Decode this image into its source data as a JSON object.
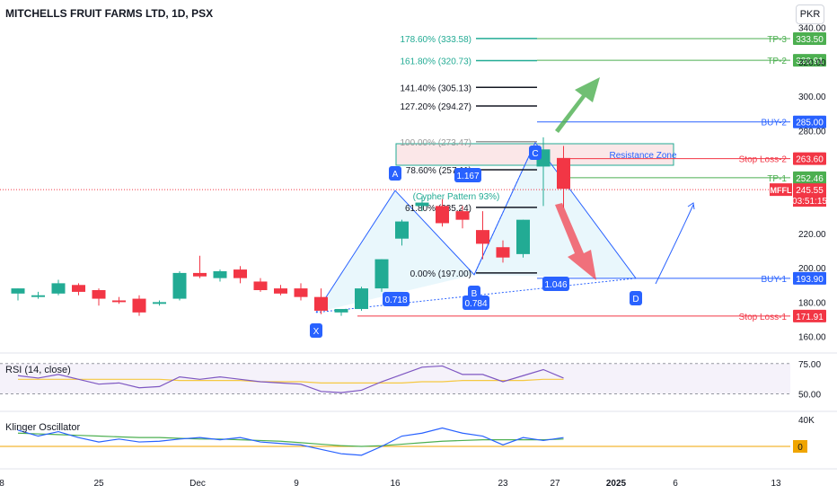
{
  "header": {
    "title": "MITCHELLS FRUIT FARMS LTD, 1D, PSX",
    "currency": "PKR"
  },
  "colors": {
    "up": "#22ab94",
    "down": "#f23645",
    "fib_green": "#22ab94",
    "tp": "#4caf50",
    "buy": "#2962ff",
    "stop": "#f23645",
    "pattern": "#2962ff",
    "zone": "#f8d7d9",
    "rsi_line": "#7e57c2",
    "rsi_ma": "#f5c842",
    "klinger": "#2962ff",
    "klinger_signal": "#4caf50",
    "zero_line": "#f0a500"
  },
  "chart_data": {
    "type": "candlestick",
    "title": "MITCHELLS FRUIT FARMS LTD, 1D, PSX",
    "ylim": [
      150,
      345
    ],
    "y_ticks": [
      "160.00",
      "180.00",
      "200.00",
      "220.00",
      "280.00",
      "300.00",
      "320.00",
      "340.00"
    ],
    "x_ticks": [
      "8",
      "25",
      "Dec",
      "9",
      "16",
      "23",
      "27",
      "2025",
      "6",
      "13"
    ],
    "candles": [
      {
        "o": 185,
        "h": 188,
        "l": 181,
        "c": 188
      },
      {
        "o": 183,
        "h": 186,
        "l": 182,
        "c": 184
      },
      {
        "o": 185,
        "h": 193,
        "l": 184,
        "c": 191
      },
      {
        "o": 190,
        "h": 191,
        "l": 184,
        "c": 186
      },
      {
        "o": 187,
        "h": 188,
        "l": 178,
        "c": 182
      },
      {
        "o": 181,
        "h": 183,
        "l": 179,
        "c": 180
      },
      {
        "o": 182,
        "h": 184,
        "l": 172,
        "c": 174
      },
      {
        "o": 179,
        "h": 181,
        "l": 178,
        "c": 180
      },
      {
        "o": 182,
        "h": 198,
        "l": 181,
        "c": 197
      },
      {
        "o": 197,
        "h": 207,
        "l": 194,
        "c": 195
      },
      {
        "o": 194,
        "h": 199,
        "l": 192,
        "c": 198
      },
      {
        "o": 199,
        "h": 201,
        "l": 191,
        "c": 194
      },
      {
        "o": 192,
        "h": 194,
        "l": 186,
        "c": 187
      },
      {
        "o": 188,
        "h": 190,
        "l": 184,
        "c": 185
      },
      {
        "o": 188,
        "h": 191,
        "l": 181,
        "c": 183
      },
      {
        "o": 183,
        "h": 188,
        "l": 173,
        "c": 175
      },
      {
        "o": 174,
        "h": 175,
        "l": 172,
        "c": 176
      },
      {
        "o": 176,
        "h": 189,
        "l": 175,
        "c": 188
      },
      {
        "o": 188,
        "h": 205,
        "l": 186,
        "c": 205
      },
      {
        "o": 217,
        "h": 228,
        "l": 213,
        "c": 227
      },
      {
        "o": 236,
        "h": 242,
        "l": 233,
        "c": 238
      },
      {
        "o": 236,
        "h": 240,
        "l": 224,
        "c": 226
      },
      {
        "o": 233,
        "h": 236,
        "l": 223,
        "c": 228
      },
      {
        "o": 222,
        "h": 233,
        "l": 205,
        "c": 214
      },
      {
        "o": 212,
        "h": 216,
        "l": 203,
        "c": 206
      },
      {
        "o": 208,
        "h": 228,
        "l": 206,
        "c": 228
      },
      {
        "o": 259,
        "h": 276,
        "l": 236,
        "c": 269
      },
      {
        "o": 264,
        "h": 271,
        "l": 235,
        "c": 246
      }
    ],
    "fib_levels": [
      {
        "label": "178.60% (333.58)",
        "value": 333.58,
        "color": "#22ab94"
      },
      {
        "label": "161.80% (320.73)",
        "value": 320.73,
        "color": "#22ab94"
      },
      {
        "label": "141.40% (305.13)",
        "value": 305.13,
        "color": "#131722"
      },
      {
        "label": "127.20% (294.27)",
        "value": 294.27,
        "color": "#131722"
      },
      {
        "label": "100.00% (273.47)",
        "value": 273.47,
        "color": "#999999"
      },
      {
        "label": "78.60% (257.11)",
        "value": 257.11,
        "color": "#131722"
      },
      {
        "label": "61.80% (235.24)",
        "value": 235.24,
        "color": "#131722"
      },
      {
        "label": "0.00% (197.00)",
        "value": 197.0,
        "color": "#131722"
      }
    ],
    "price_levels": [
      {
        "name": "TP-3",
        "value": 333.5,
        "price": "333.50",
        "kind": "tp"
      },
      {
        "name": "TP-2",
        "value": 320.91,
        "price": "320.91",
        "kind": "tp"
      },
      {
        "name": "BUY-2",
        "value": 285.0,
        "price": "285.00",
        "kind": "buy"
      },
      {
        "name": "Stop Loss-2",
        "value": 263.6,
        "price": "263.60",
        "kind": "stop"
      },
      {
        "name": "TP-1",
        "value": 252.46,
        "price": "252.46",
        "kind": "tp"
      },
      {
        "name": "BUY-1",
        "value": 193.9,
        "price": "193.90",
        "kind": "buy"
      },
      {
        "name": "Stop Loss-1",
        "value": 171.91,
        "price": "171.91",
        "kind": "stop"
      }
    ],
    "last_price": {
      "ticker": "MFFL",
      "price": "245.55",
      "countdown": "03:51:15"
    },
    "pattern": {
      "name": "(Cypher Pattern 93%)",
      "points": [
        {
          "label": "X",
          "value": 174
        },
        {
          "label": "A",
          "value": 245
        },
        {
          "label": "B",
          "value": 196
        },
        {
          "label": "C",
          "value": 273
        },
        {
          "label": "D",
          "value": 193.9
        }
      ],
      "ratios": [
        "0.718",
        "0.784",
        "1.167",
        "1.046"
      ]
    },
    "resistance_zone_label": "Resistance Zone",
    "rsi": {
      "label": "RSI (14, close)",
      "ticks": [
        "75.00",
        "50.00"
      ],
      "values": [
        65,
        63,
        66,
        62,
        58,
        59,
        55,
        56,
        64,
        62,
        64,
        62,
        60,
        59,
        58,
        52,
        51,
        53,
        60,
        66,
        72,
        73,
        66,
        66,
        60,
        65,
        70,
        63
      ],
      "ma": [
        62,
        62,
        62,
        62,
        62,
        62,
        62,
        62,
        61,
        61,
        61,
        61,
        60,
        60,
        60,
        59,
        59,
        59,
        59,
        59,
        60,
        60,
        61,
        61,
        61,
        61,
        62,
        62
      ]
    },
    "klinger": {
      "label": "Klinger Oscillator",
      "ticks": [
        "40K",
        "0"
      ],
      "values": [
        22,
        14,
        20,
        12,
        6,
        10,
        6,
        7,
        10,
        12,
        9,
        12,
        6,
        4,
        2,
        -4,
        -10,
        -12,
        0,
        14,
        18,
        25,
        18,
        14,
        2,
        12,
        8,
        12
      ],
      "signal": [
        18,
        17,
        16,
        15,
        14,
        13,
        12,
        12,
        11,
        10,
        10,
        9,
        8,
        7,
        5,
        3,
        1,
        0,
        1,
        3,
        5,
        7,
        8,
        9,
        9,
        9,
        9,
        10
      ]
    }
  }
}
